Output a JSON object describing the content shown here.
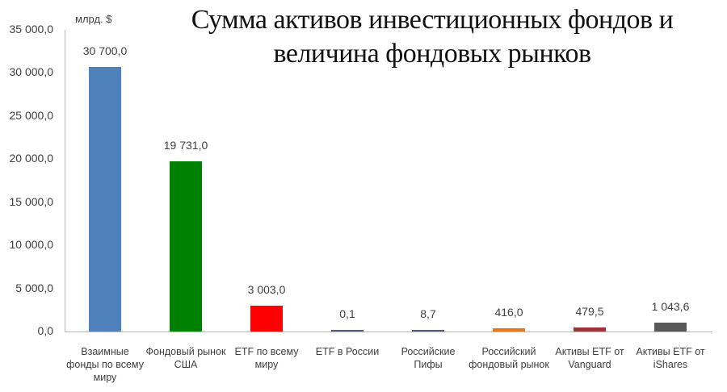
{
  "title": {
    "line1": "Сумма активов инвестиционных фондов и",
    "line2": "величина фондовых рынков"
  },
  "y_axis": {
    "unit": "млрд. $",
    "ticks": [
      "35 000,0",
      "30 000,0",
      "25 000,0",
      "20 000,0",
      "15 000,0",
      "10 000,0",
      "5 000,0",
      "0,0"
    ]
  },
  "bars": [
    {
      "label": "Взаимные фонды по всему миру",
      "value": 30700.0,
      "value_label": "30 700,0",
      "color": "#4f81bd"
    },
    {
      "label": "Фондовый рынок США",
      "value": 19731.0,
      "value_label": "19 731,0",
      "color": "#008000"
    },
    {
      "label": "ETF по всему миру",
      "value": 3003.0,
      "value_label": "3 003,0",
      "color": "#ff0000"
    },
    {
      "label": "ETF в России",
      "value": 0.1,
      "value_label": "0,1",
      "color": "#5a5a7a"
    },
    {
      "label": "Российские Пифы",
      "value": 8.7,
      "value_label": "8,7",
      "color": "#5a5a7a"
    },
    {
      "label": "Российский фондовый рынок",
      "value": 416.0,
      "value_label": "416,0",
      "color": "#e07b24"
    },
    {
      "label": "Активы ETF от Vanguard",
      "value": 479.5,
      "value_label": "479,5",
      "color": "#953735"
    },
    {
      "label": "Активы ETF от iShares",
      "value": 1043.6,
      "value_label": "1 043,6",
      "color": "#595959"
    }
  ],
  "chart_data": {
    "type": "bar",
    "title": "Сумма активов инвестиционных фондов и величина фондовых рынков",
    "xlabel": "",
    "ylabel": "млрд. $",
    "ylim": [
      0,
      35000
    ],
    "yticks": [
      0,
      5000,
      10000,
      15000,
      20000,
      25000,
      30000,
      35000
    ],
    "grid": false,
    "legend": "none",
    "categories": [
      "Взаимные фонды по всему миру",
      "Фондовый рынок США",
      "ETF по всему миру",
      "ETF в России",
      "Российские Пифы",
      "Российский фондовый рынок",
      "Активы ETF от Vanguard",
      "Активы ETF от iShares"
    ],
    "values": [
      30700.0,
      19731.0,
      3003.0,
      0.1,
      8.7,
      416.0,
      479.5,
      1043.6
    ],
    "data_labels": [
      "30 700,0",
      "19 731,0",
      "3 003,0",
      "0,1",
      "8,7",
      "416,0",
      "479,5",
      "1 043,6"
    ],
    "colors": [
      "#4f81bd",
      "#008000",
      "#ff0000",
      "#5a5a7a",
      "#5a5a7a",
      "#e07b24",
      "#953735",
      "#595959"
    ]
  }
}
